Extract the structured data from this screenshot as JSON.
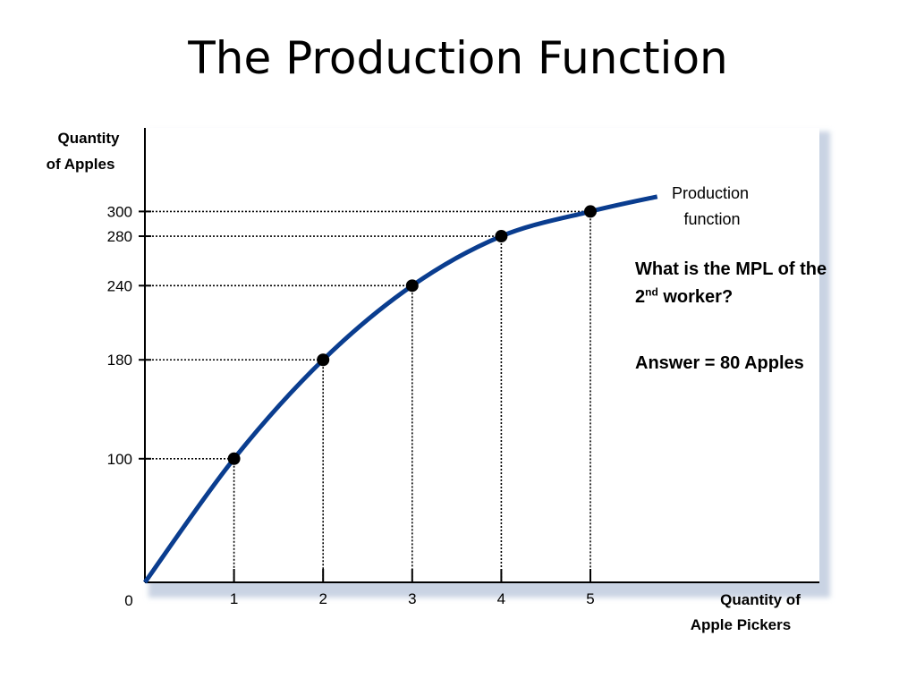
{
  "slide": {
    "title": "The Production Function"
  },
  "chart_data": {
    "type": "line",
    "x_label": "Quantity of Apple Pickers",
    "x_label_lines": [
      "Quantity of",
      "Apple Pickers"
    ],
    "y_label": "Quantity of Apples",
    "y_label_lines": [
      "Quantity",
      "of Apples"
    ],
    "origin_label": "0",
    "x_ticks": [
      "1",
      "2",
      "3",
      "4",
      "5"
    ],
    "y_ticks": [
      "100",
      "180",
      "240",
      "280",
      "300"
    ],
    "xlim": [
      0,
      5.77
    ],
    "ylim": [
      0,
      320
    ],
    "curve_label_lines": [
      "Production",
      "function"
    ],
    "line_color": "#0a3d8f",
    "points": [
      {
        "x": 0,
        "y": 0
      },
      {
        "x": 1,
        "y": 100
      },
      {
        "x": 2,
        "y": 180
      },
      {
        "x": 3,
        "y": 240
      },
      {
        "x": 4,
        "y": 280
      },
      {
        "x": 5,
        "y": 300
      }
    ],
    "curve_end": {
      "x": 5.75,
      "y": 312
    }
  },
  "annotation": {
    "question_pre": "What is the MPL of the",
    "question_num": "2",
    "question_sup": "nd",
    "question_post": " worker?",
    "answer": "Answer  = 80 Apples"
  }
}
